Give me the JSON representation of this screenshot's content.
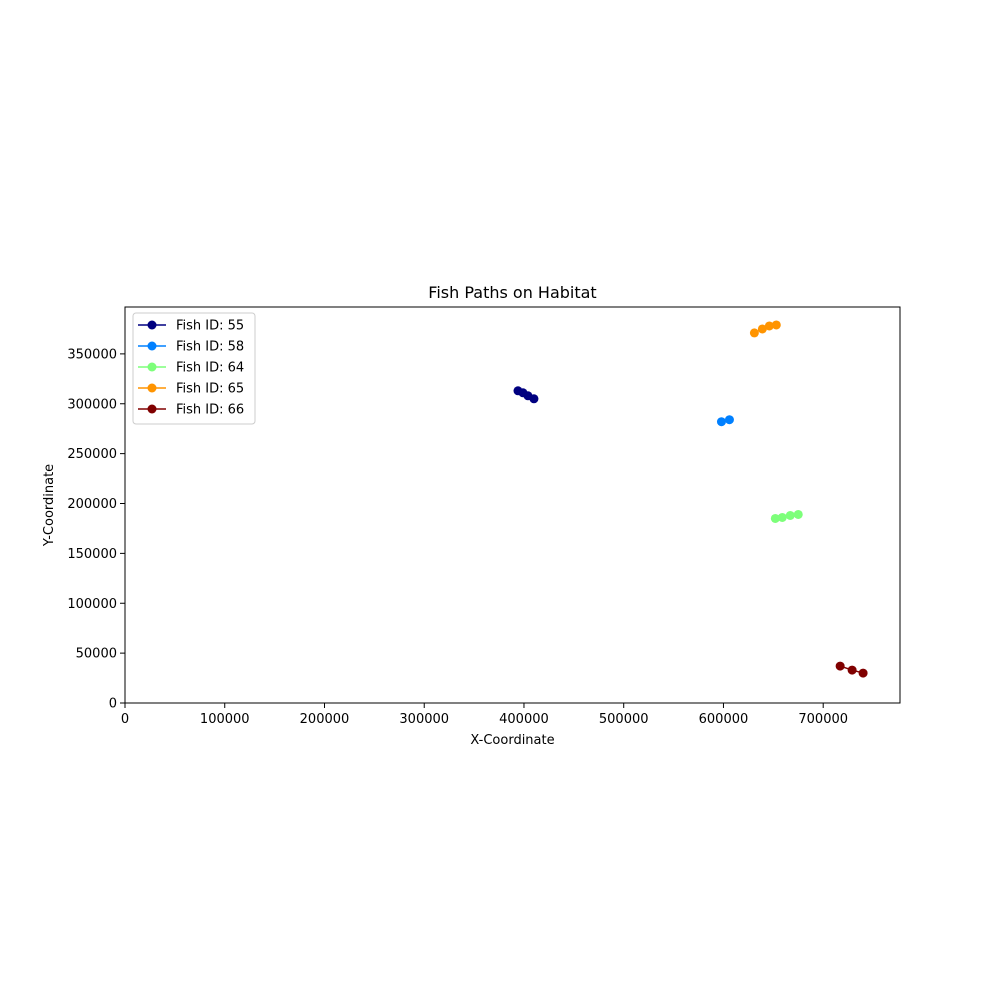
{
  "chart_data": {
    "type": "line",
    "title": "Fish Paths on Habitat",
    "xlabel": "X-Coordinate",
    "ylabel": "Y-Coordinate",
    "xlim": [
      0,
      777000
    ],
    "ylim": [
      0,
      397000
    ],
    "xticks": [
      0,
      100000,
      200000,
      300000,
      400000,
      500000,
      600000,
      700000
    ],
    "yticks": [
      0,
      50000,
      100000,
      150000,
      200000,
      250000,
      300000,
      350000
    ],
    "grid": false,
    "legend_position": "upper-left",
    "series": [
      {
        "name": "Fish ID: 55",
        "color": "#000080",
        "x": [
          394000,
          399000,
          404000,
          410000
        ],
        "y": [
          313000,
          311000,
          308000,
          305000
        ]
      },
      {
        "name": "Fish ID: 58",
        "color": "#0080ff",
        "x": [
          598000,
          606000
        ],
        "y": [
          282000,
          284000
        ]
      },
      {
        "name": "Fish ID: 64",
        "color": "#7dff7a",
        "x": [
          652000,
          659000,
          667000,
          675000
        ],
        "y": [
          185000,
          186000,
          188000,
          189000
        ]
      },
      {
        "name": "Fish ID: 65",
        "color": "#ff9400",
        "x": [
          631000,
          639000,
          646000,
          653000
        ],
        "y": [
          371000,
          375000,
          378000,
          379000
        ]
      },
      {
        "name": "Fish ID: 66",
        "color": "#800000",
        "x": [
          717000,
          729000,
          740000
        ],
        "y": [
          37000,
          33000,
          30000
        ]
      }
    ]
  }
}
